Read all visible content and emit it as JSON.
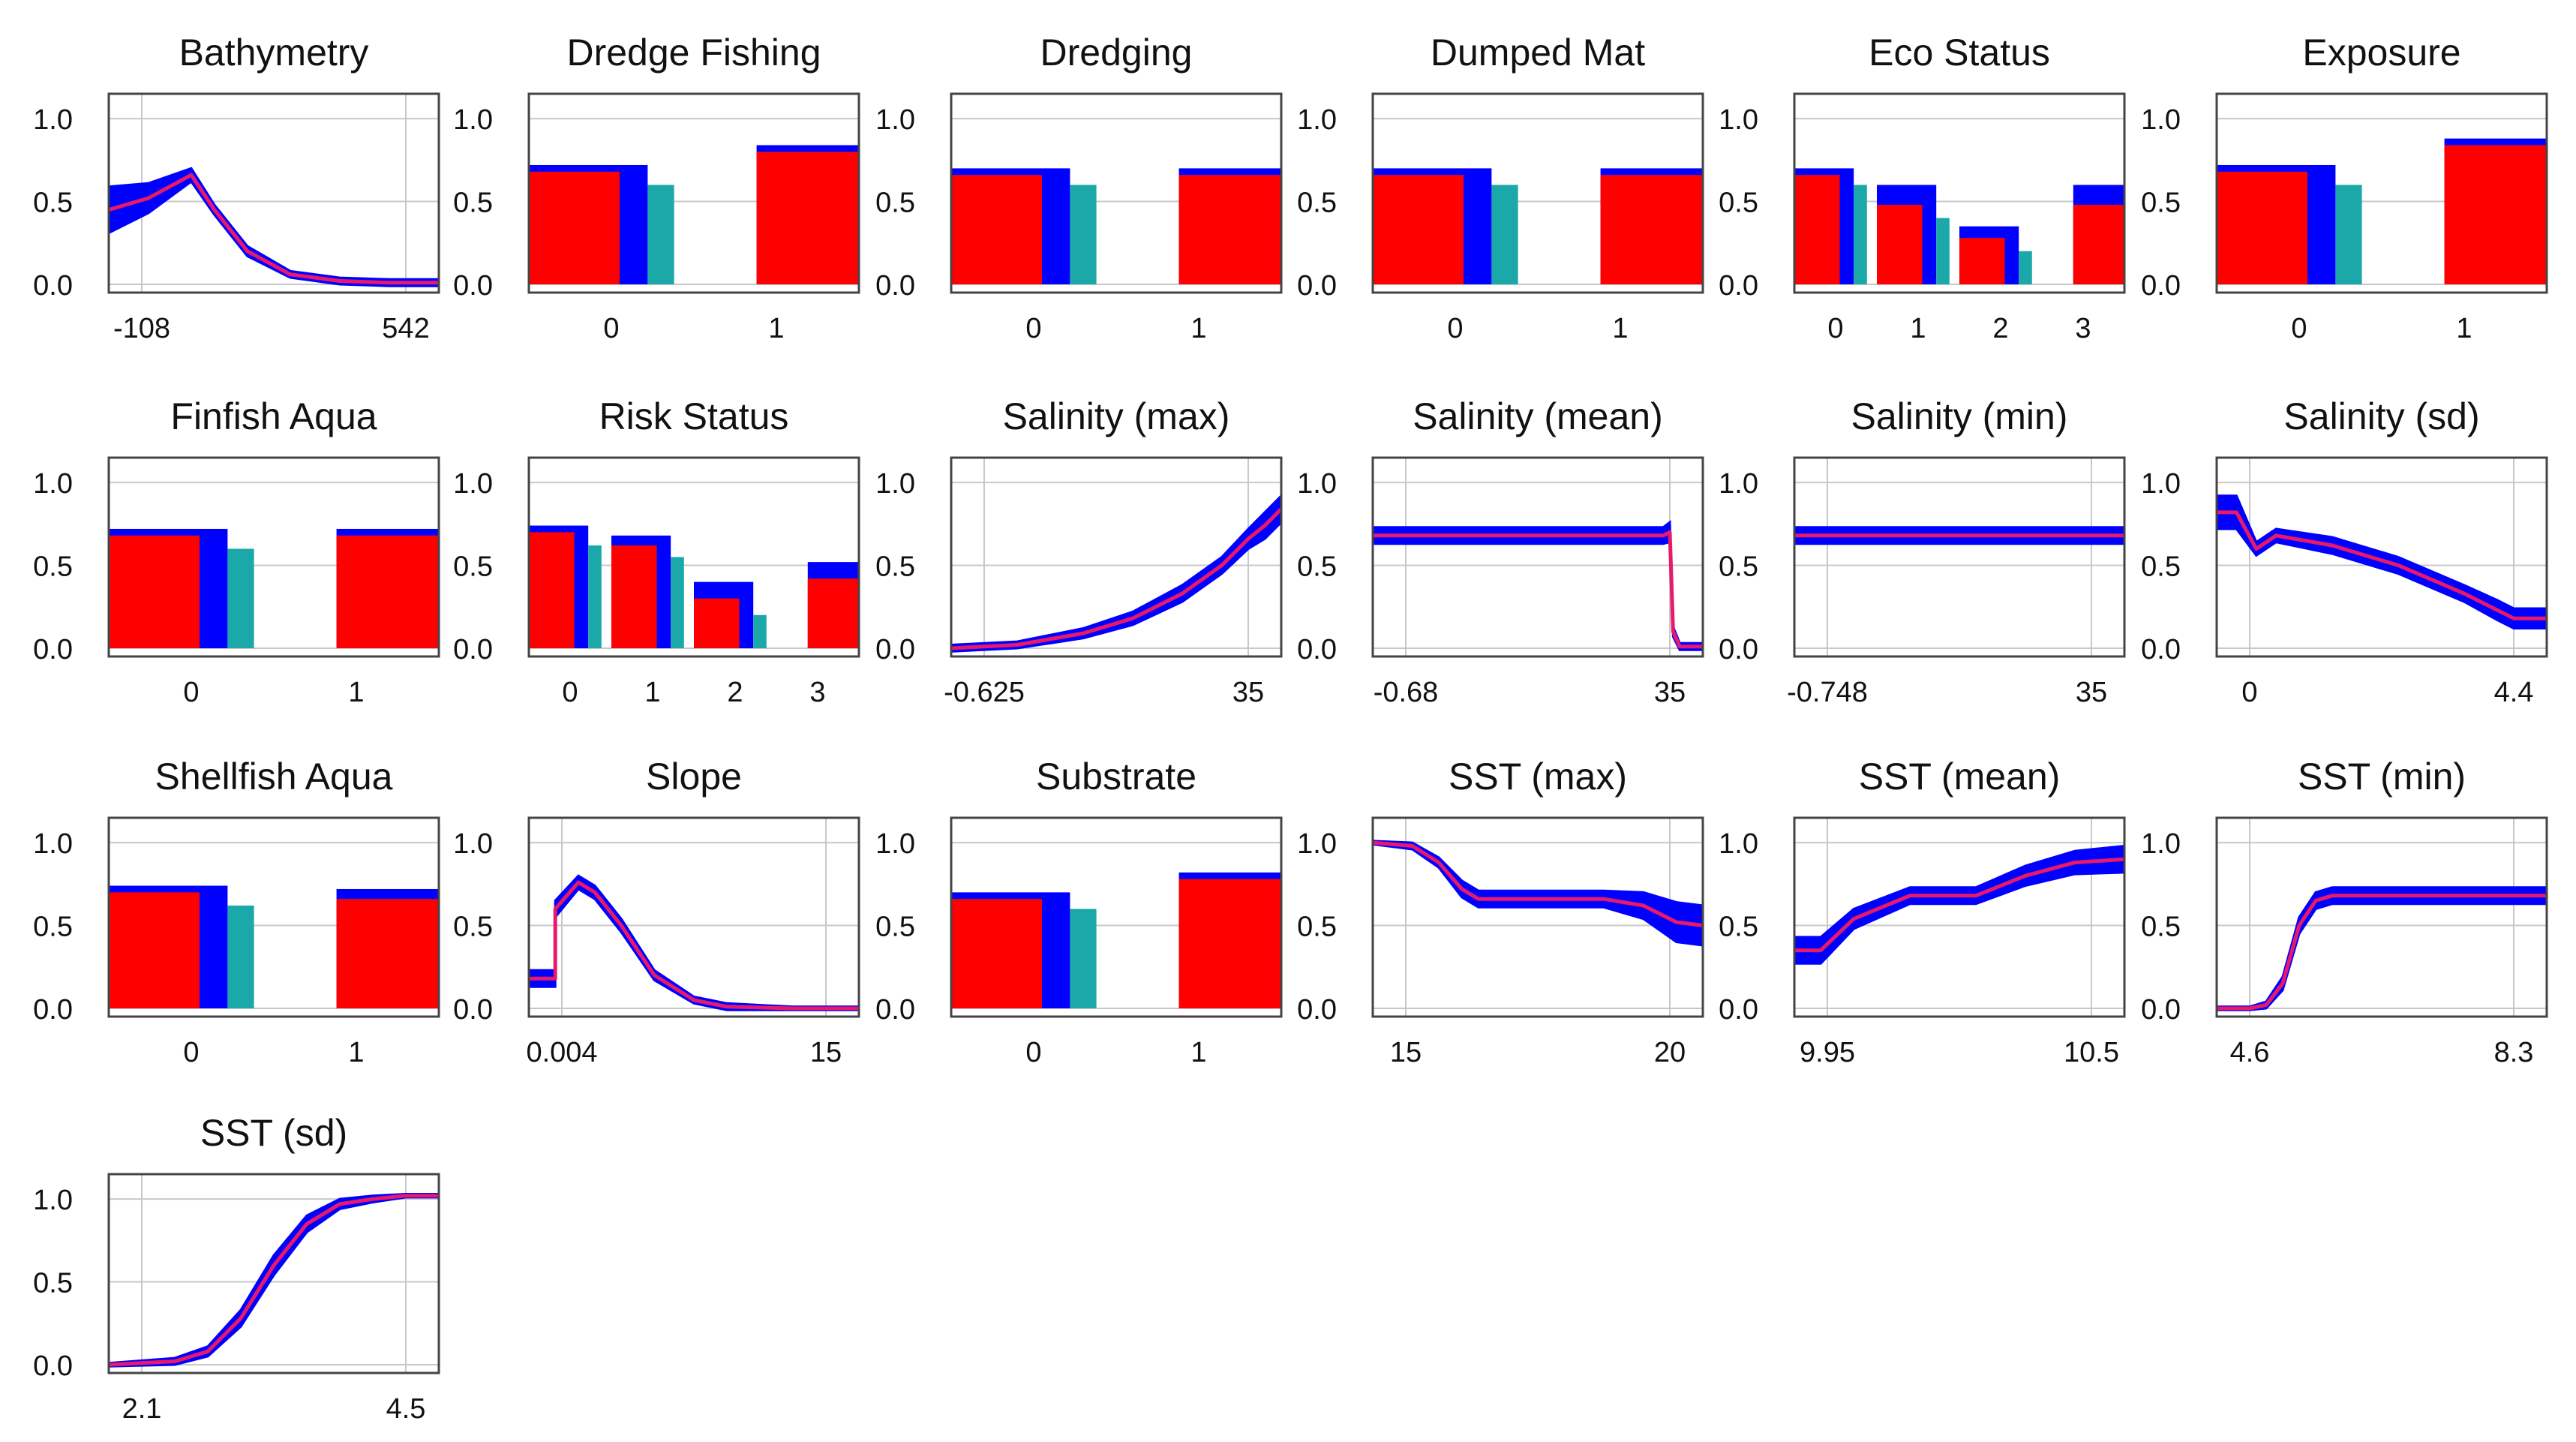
{
  "colors": {
    "band": "#0000ff",
    "line": "#e8196b",
    "bar_main": "#ff0000",
    "bar_band": "#0000ff",
    "bar_other": "#1aa8a8",
    "grid": "#c8c8c8",
    "frame": "#444444"
  },
  "chart_data": [
    {
      "title": "Bathymetry",
      "type": "line",
      "x_ticks": [
        "-108",
        "542"
      ],
      "y_ticks": [
        "1.0",
        "0.5",
        "0.0"
      ],
      "ylim": [
        -0.05,
        1.15
      ],
      "series": [
        {
          "name": "response",
          "x": [
            0,
            0.12,
            0.25,
            0.32,
            0.42,
            0.55,
            0.7,
            0.85,
            1
          ],
          "y": [
            0.45,
            0.52,
            0.66,
            0.45,
            0.2,
            0.06,
            0.02,
            0.01,
            0.01
          ],
          "band": [
            0.14,
            0.09,
            0.04,
            0.03,
            0.03,
            0.02,
            0.02,
            0.02,
            0.02
          ]
        }
      ]
    },
    {
      "title": "Dredge Fishing",
      "type": "bar",
      "x_ticks": [
        "0",
        "1"
      ],
      "y_ticks": [
        "1.0",
        "0.5",
        "0.0"
      ],
      "ylim": [
        -0.05,
        1.15
      ],
      "bars": [
        {
          "level": "0",
          "value": 0.68,
          "upper": 0.72,
          "other": 0.6
        },
        {
          "level": "1",
          "value": 0.8,
          "upper": 0.84,
          "other": null
        }
      ]
    },
    {
      "title": "Dredging",
      "type": "bar",
      "x_ticks": [
        "0",
        "1"
      ],
      "y_ticks": [
        "1.0",
        "0.5",
        "0.0"
      ],
      "ylim": [
        -0.05,
        1.15
      ],
      "bars": [
        {
          "level": "0",
          "value": 0.66,
          "upper": 0.7,
          "other": 0.6
        },
        {
          "level": "1",
          "value": 0.66,
          "upper": 0.7,
          "other": null
        }
      ]
    },
    {
      "title": "Dumped Mat",
      "type": "bar",
      "x_ticks": [
        "0",
        "1"
      ],
      "y_ticks": [
        "1.0",
        "0.5",
        "0.0"
      ],
      "ylim": [
        -0.05,
        1.15
      ],
      "bars": [
        {
          "level": "0",
          "value": 0.66,
          "upper": 0.7,
          "other": 0.6
        },
        {
          "level": "1",
          "value": 0.66,
          "upper": 0.7,
          "other": null
        }
      ]
    },
    {
      "title": "Eco Status",
      "type": "bar",
      "x_ticks": [
        "0",
        "1",
        "2",
        "3"
      ],
      "y_ticks": [
        "1.0",
        "0.5",
        "0.0"
      ],
      "ylim": [
        -0.05,
        1.15
      ],
      "bars": [
        {
          "level": "0",
          "value": 0.66,
          "upper": 0.7,
          "other": 0.6
        },
        {
          "level": "1",
          "value": 0.48,
          "upper": 0.6,
          "other": 0.4
        },
        {
          "level": "2",
          "value": 0.28,
          "upper": 0.35,
          "other": 0.2
        },
        {
          "level": "3",
          "value": 0.48,
          "upper": 0.6,
          "other": null
        }
      ]
    },
    {
      "title": "Exposure",
      "type": "bar",
      "x_ticks": [
        "0",
        "1"
      ],
      "y_ticks": [
        "1.0",
        "0.5",
        "0.0"
      ],
      "ylim": [
        -0.05,
        1.15
      ],
      "bars": [
        {
          "level": "0",
          "value": 0.68,
          "upper": 0.72,
          "other": 0.6
        },
        {
          "level": "1",
          "value": 0.84,
          "upper": 0.88,
          "other": null
        }
      ]
    },
    {
      "title": "Finfish Aqua",
      "type": "bar",
      "x_ticks": [
        "0",
        "1"
      ],
      "y_ticks": [
        "1.0",
        "0.5",
        "0.0"
      ],
      "ylim": [
        -0.05,
        1.15
      ],
      "bars": [
        {
          "level": "0",
          "value": 0.68,
          "upper": 0.72,
          "other": 0.6
        },
        {
          "level": "1",
          "value": 0.68,
          "upper": 0.72,
          "other": null
        }
      ]
    },
    {
      "title": "Risk Status",
      "type": "bar",
      "x_ticks": [
        "0",
        "1",
        "2",
        "3"
      ],
      "y_ticks": [
        "1.0",
        "0.5",
        "0.0"
      ],
      "ylim": [
        -0.05,
        1.15
      ],
      "bars": [
        {
          "level": "0",
          "value": 0.7,
          "upper": 0.74,
          "other": 0.62
        },
        {
          "level": "1",
          "value": 0.62,
          "upper": 0.68,
          "other": 0.55
        },
        {
          "level": "2",
          "value": 0.3,
          "upper": 0.4,
          "other": 0.2
        },
        {
          "level": "3",
          "value": 0.42,
          "upper": 0.52,
          "other": null
        }
      ]
    },
    {
      "title": "Salinity (max)",
      "type": "line",
      "x_ticks": [
        "-0.625",
        "35"
      ],
      "y_ticks": [
        "1.0",
        "0.5",
        "0.0"
      ],
      "ylim": [
        -0.05,
        1.15
      ],
      "series": [
        {
          "name": "response",
          "x": [
            0,
            0.2,
            0.4,
            0.55,
            0.7,
            0.82,
            0.9,
            0.95,
            1
          ],
          "y": [
            0.0,
            0.02,
            0.09,
            0.18,
            0.33,
            0.5,
            0.66,
            0.74,
            0.84
          ],
          "band": [
            0.02,
            0.02,
            0.03,
            0.04,
            0.05,
            0.05,
            0.06,
            0.08,
            0.08
          ]
        }
      ]
    },
    {
      "title": "Salinity (mean)",
      "type": "line",
      "x_ticks": [
        "-0.68",
        "35"
      ],
      "y_ticks": [
        "1.0",
        "0.5",
        "0.0"
      ],
      "ylim": [
        -0.05,
        1.15
      ],
      "series": [
        {
          "name": "response",
          "x": [
            0,
            0.5,
            0.8,
            0.88,
            0.9,
            0.91,
            0.93,
            1
          ],
          "y": [
            0.68,
            0.68,
            0.68,
            0.68,
            0.7,
            0.1,
            0.01,
            0.01
          ],
          "band": [
            0.05,
            0.05,
            0.05,
            0.05,
            0.06,
            0.03,
            0.02,
            0.02
          ]
        }
      ]
    },
    {
      "title": "Salinity (min)",
      "type": "line",
      "x_ticks": [
        "-0.748",
        "35"
      ],
      "y_ticks": [
        "1.0",
        "0.5",
        "0.0"
      ],
      "ylim": [
        -0.05,
        1.15
      ],
      "series": [
        {
          "name": "response",
          "x": [
            0,
            1
          ],
          "y": [
            0.68,
            0.68
          ],
          "band": [
            0.05,
            0.05
          ]
        }
      ]
    },
    {
      "title": "Salinity (sd)",
      "type": "line",
      "x_ticks": [
        "0",
        "4.4"
      ],
      "y_ticks": [
        "1.0",
        "0.5",
        "0.0"
      ],
      "ylim": [
        -0.05,
        1.15
      ],
      "series": [
        {
          "name": "response",
          "x": [
            0,
            0.06,
            0.12,
            0.18,
            0.35,
            0.55,
            0.75,
            0.85,
            0.9,
            0.94,
            1
          ],
          "y": [
            0.82,
            0.82,
            0.6,
            0.68,
            0.62,
            0.5,
            0.33,
            0.23,
            0.18,
            0.18,
            0.18
          ],
          "band": [
            0.1,
            0.1,
            0.04,
            0.04,
            0.05,
            0.05,
            0.05,
            0.06,
            0.06,
            0.06,
            0.06
          ]
        }
      ]
    },
    {
      "title": "Shellfish Aqua",
      "type": "bar",
      "x_ticks": [
        "0",
        "1"
      ],
      "y_ticks": [
        "1.0",
        "0.5",
        "0.0"
      ],
      "ylim": [
        -0.05,
        1.15
      ],
      "bars": [
        {
          "level": "0",
          "value": 0.7,
          "upper": 0.74,
          "other": 0.62
        },
        {
          "level": "1",
          "value": 0.66,
          "upper": 0.72,
          "other": null
        }
      ]
    },
    {
      "title": "Slope",
      "type": "line",
      "x_ticks": [
        "0.004",
        "15"
      ],
      "y_ticks": [
        "1.0",
        "0.5",
        "0.0"
      ],
      "ylim": [
        -0.05,
        1.15
      ],
      "series": [
        {
          "name": "response",
          "x": [
            0,
            0.08,
            0.08,
            0.15,
            0.2,
            0.28,
            0.38,
            0.5,
            0.6,
            0.8,
            1
          ],
          "y": [
            0.18,
            0.18,
            0.6,
            0.76,
            0.7,
            0.5,
            0.2,
            0.05,
            0.01,
            0.0,
            0.0
          ],
          "band": [
            0.05,
            0.05,
            0.05,
            0.04,
            0.04,
            0.04,
            0.03,
            0.02,
            0.02,
            0.01,
            0.01
          ]
        }
      ]
    },
    {
      "title": "Substrate",
      "type": "bar",
      "x_ticks": [
        "0",
        "1"
      ],
      "y_ticks": [
        "1.0",
        "0.5",
        "0.0"
      ],
      "ylim": [
        -0.05,
        1.15
      ],
      "bars": [
        {
          "level": "0",
          "value": 0.66,
          "upper": 0.7,
          "other": 0.6
        },
        {
          "level": "1",
          "value": 0.78,
          "upper": 0.82,
          "other": null
        }
      ]
    },
    {
      "title": "SST (max)",
      "type": "line",
      "x_ticks": [
        "15",
        "20"
      ],
      "y_ticks": [
        "1.0",
        "0.5",
        "0.0"
      ],
      "ylim": [
        -0.05,
        1.15
      ],
      "series": [
        {
          "name": "response",
          "x": [
            0,
            0.12,
            0.2,
            0.27,
            0.32,
            0.5,
            0.7,
            0.82,
            0.92,
            1
          ],
          "y": [
            1.0,
            0.98,
            0.88,
            0.72,
            0.66,
            0.66,
            0.66,
            0.62,
            0.52,
            0.5
          ],
          "band": [
            0.01,
            0.02,
            0.03,
            0.05,
            0.05,
            0.05,
            0.05,
            0.08,
            0.12,
            0.12
          ]
        }
      ]
    },
    {
      "title": "SST (mean)",
      "type": "line",
      "x_ticks": [
        "9.95",
        "10.5"
      ],
      "y_ticks": [
        "1.0",
        "0.5",
        "0.0"
      ],
      "ylim": [
        -0.05,
        1.15
      ],
      "series": [
        {
          "name": "response",
          "x": [
            0,
            0.08,
            0.18,
            0.35,
            0.55,
            0.7,
            0.85,
            1
          ],
          "y": [
            0.35,
            0.35,
            0.54,
            0.68,
            0.68,
            0.8,
            0.88,
            0.9
          ],
          "band": [
            0.08,
            0.08,
            0.06,
            0.05,
            0.05,
            0.06,
            0.07,
            0.08
          ]
        }
      ]
    },
    {
      "title": "SST (min)",
      "type": "line",
      "x_ticks": [
        "4.6",
        "8.3"
      ],
      "y_ticks": [
        "1.0",
        "0.5",
        "0.0"
      ],
      "ylim": [
        -0.05,
        1.15
      ],
      "series": [
        {
          "name": "response",
          "x": [
            0,
            0.1,
            0.15,
            0.2,
            0.25,
            0.3,
            0.35,
            0.5,
            1
          ],
          "y": [
            0.0,
            0.0,
            0.02,
            0.15,
            0.5,
            0.65,
            0.68,
            0.68,
            0.68
          ],
          "band": [
            0.01,
            0.01,
            0.02,
            0.04,
            0.05,
            0.05,
            0.05,
            0.05,
            0.05
          ]
        }
      ]
    },
    {
      "title": "SST (sd)",
      "type": "line",
      "x_ticks": [
        "2.1",
        "4.5"
      ],
      "y_ticks": [
        "1.0",
        "0.5",
        "0.0"
      ],
      "ylim": [
        -0.05,
        1.15
      ],
      "series": [
        {
          "name": "response",
          "x": [
            0,
            0.2,
            0.3,
            0.4,
            0.5,
            0.6,
            0.7,
            0.8,
            0.9,
            1
          ],
          "y": [
            0.0,
            0.02,
            0.08,
            0.28,
            0.6,
            0.85,
            0.97,
            1.0,
            1.02,
            1.02
          ],
          "band": [
            0.01,
            0.02,
            0.03,
            0.05,
            0.06,
            0.05,
            0.03,
            0.02,
            0.01,
            0.01
          ]
        }
      ]
    }
  ]
}
